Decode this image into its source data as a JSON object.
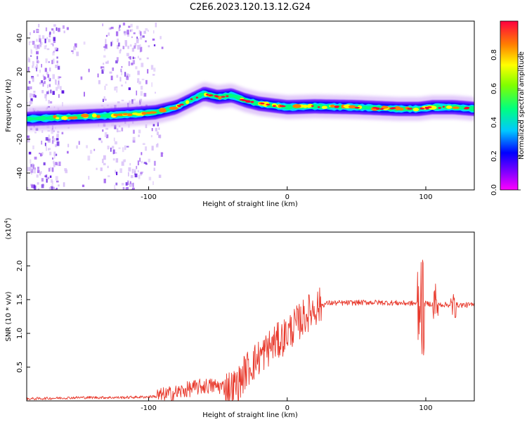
{
  "figure": {
    "title": "C2E6.2023.120.13.12.G24"
  },
  "chart_data": [
    {
      "type": "heatmap",
      "xlabel": "Height of straight line (km)",
      "ylabel": "Frequency (Hz)",
      "xlim": [
        -188,
        135
      ],
      "ylim": [
        -50,
        50
      ],
      "xticks": [
        -100,
        0,
        100
      ],
      "yticks": [
        -40,
        -20,
        0,
        20,
        40
      ],
      "colorbar": {
        "label": "Normalized spectral amplitude",
        "range": [
          0,
          1
        ],
        "ticks": [
          0.0,
          0.2,
          0.4,
          0.6,
          0.8
        ]
      },
      "ridge": {
        "x": [
          -188,
          -160,
          -130,
          -110,
          -95,
          -80,
          -70,
          -60,
          -50,
          -40,
          -30,
          -20,
          -10,
          0,
          20,
          50,
          80,
          95,
          105,
          120,
          135
        ],
        "freq": [
          -8,
          -7,
          -6,
          -5,
          -4,
          -1,
          3,
          7,
          5,
          6,
          3,
          1,
          0,
          -1,
          -0.5,
          -1,
          -2,
          -2,
          -1,
          -1,
          -2
        ]
      }
    },
    {
      "type": "line",
      "xlabel": "Height of straight line (km)",
      "ylabel": "SNR (10 * v/v)",
      "yscale_label": "(x10",
      "yscale_exp": "4",
      "yscale_close": ")",
      "xlim": [
        -188,
        135
      ],
      "ylim": [
        0,
        2.5
      ],
      "xticks": [
        -100,
        0,
        100
      ],
      "yticks": [
        0.5,
        1.0,
        1.5,
        2.0
      ],
      "series": [
        {
          "color": "#e8392c",
          "trend": {
            "x": [
              -188,
              -150,
              -120,
              -100,
              -90,
              -80,
              -70,
              -60,
              -50,
              -40,
              -35,
              -30,
              -25,
              -20,
              -15,
              -10,
              -5,
              0,
              5,
              10,
              15,
              20,
              25,
              30,
              40,
              60,
              80,
              100,
              120,
              135
            ],
            "y": [
              0.03,
              0.05,
              0.05,
              0.06,
              0.08,
              0.12,
              0.18,
              0.22,
              0.22,
              0.18,
              0.25,
              0.45,
              0.55,
              0.65,
              0.75,
              0.85,
              0.9,
              1.0,
              1.1,
              1.2,
              1.3,
              1.38,
              1.42,
              1.45,
              1.45,
              1.46,
              1.45,
              1.44,
              1.42,
              1.42
            ]
          }
        }
      ]
    }
  ]
}
